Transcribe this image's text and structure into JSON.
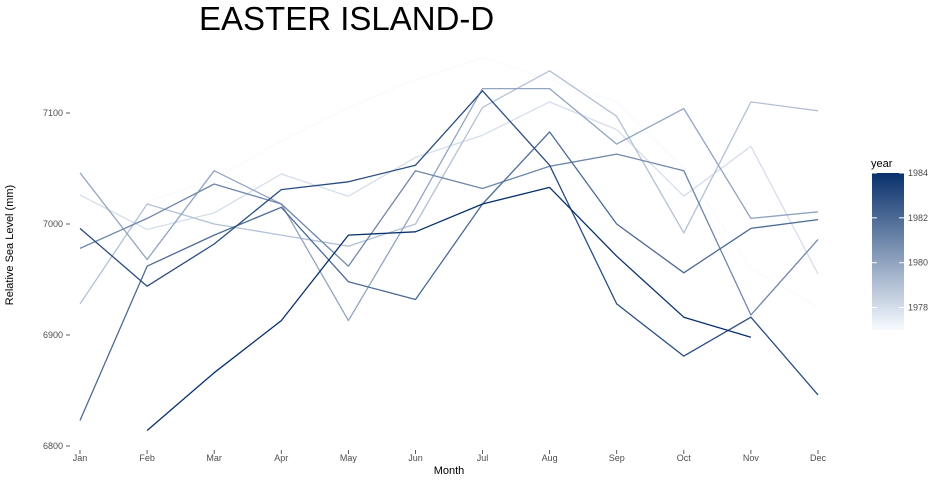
{
  "chart_data": {
    "type": "line",
    "title": "EASTER ISLAND-D",
    "xlabel": "Month",
    "ylabel": "Relative Sea Level (mm)",
    "categories": [
      "Jan",
      "Feb",
      "Mar",
      "Apr",
      "May",
      "Jun",
      "Jul",
      "Aug",
      "Sep",
      "Oct",
      "Nov",
      "Dec"
    ],
    "ylim": [
      6800,
      7150
    ],
    "yticks": [
      6800,
      6900,
      7000,
      7100
    ],
    "grid": false,
    "legend": {
      "title": "year",
      "position": "right",
      "range": [
        1977,
        1984
      ],
      "ticks": [
        1978,
        1980,
        1982,
        1984
      ],
      "low_color": "#f7fbff",
      "high_color": "#08306b"
    },
    "series": [
      {
        "year": 1977,
        "values": [
          null,
          7020,
          7040,
          7075,
          7105,
          7130,
          7150,
          7130,
          7110,
          7050,
          6960,
          6925
        ]
      },
      {
        "year": 1978,
        "values": [
          7026,
          6995,
          7010,
          7045,
          7025,
          7060,
          7080,
          7110,
          7085,
          7025,
          7070,
          6955
        ]
      },
      {
        "year": 1979,
        "values": [
          6928,
          7018,
          7000,
          6990,
          6980,
          7000,
          7105,
          7138,
          7097,
          6992,
          7110,
          7102
        ]
      },
      {
        "year": 1980,
        "values": [
          7046,
          6968,
          7048,
          7018,
          6913,
          7015,
          7122,
          7122,
          7072,
          7104,
          7005,
          7011
        ]
      },
      {
        "year": 1981,
        "values": [
          6978,
          7005,
          7036,
          7018,
          6962,
          7048,
          7032,
          7052,
          7063,
          7048,
          6918,
          6986
        ]
      },
      {
        "year": 1982,
        "values": [
          6823,
          6962,
          6990,
          7015,
          6948,
          6932,
          7018,
          7083,
          7000,
          6956,
          6996,
          7004
        ]
      },
      {
        "year": 1983,
        "values": [
          6996,
          6944,
          6982,
          7031,
          7038,
          7053,
          7120,
          7053,
          6928,
          6881,
          6916,
          6846
        ]
      },
      {
        "year": 1984,
        "values": [
          null,
          6814,
          6866,
          6913,
          6990,
          6993,
          7018,
          7033,
          6971,
          6916,
          6898,
          null
        ]
      }
    ]
  }
}
